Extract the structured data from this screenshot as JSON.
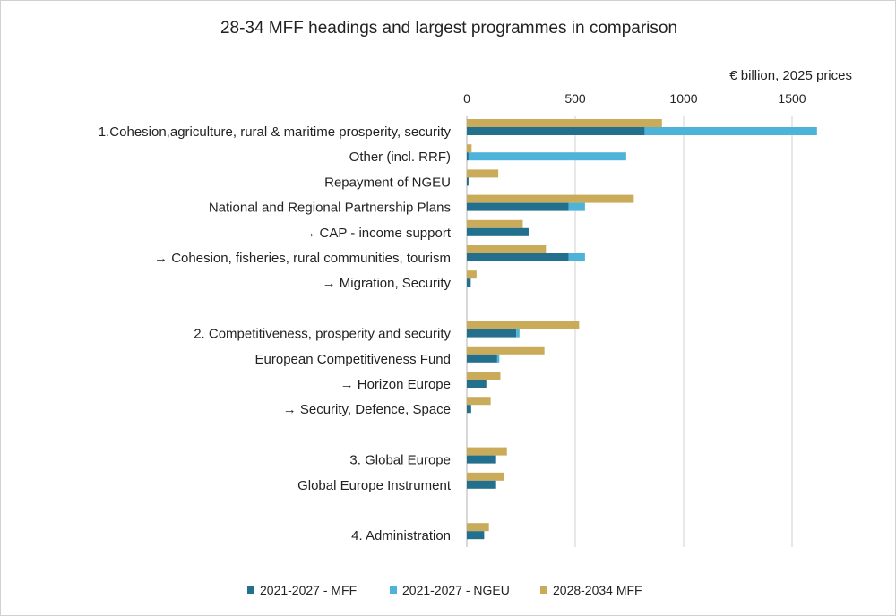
{
  "chart_data": {
    "type": "bar",
    "orientation": "horizontal",
    "title": "28-34 MFF headings and largest programmes in comparison",
    "unit_label": "€ billion, 2025 prices",
    "xlim": [
      0,
      1750
    ],
    "x_ticks": [
      "0",
      "500",
      "1000",
      "1500"
    ],
    "x_tick_values": [
      0,
      500,
      1000,
      1500
    ],
    "grid": true,
    "legend_position": "bottom",
    "colors": {
      "mff_2127": "#236f8e",
      "ngeu_2127": "#4db3d9",
      "mff_2834": "#c9ab5a"
    },
    "legend": [
      {
        "key": "mff_2127",
        "label": "2021-2027 - MFF"
      },
      {
        "key": "ngeu_2127",
        "label": "2021-2027 - NGEU"
      },
      {
        "key": "mff_2834",
        "label": "2028-2034 MFF"
      }
    ],
    "rows": [
      {
        "label": "1.Cohesion,agriculture, rural & maritime prosperity, security",
        "mff_2127": 820,
        "ngeu_2127": 795,
        "mff_2834": 900
      },
      {
        "label": "Other (incl. RRF)",
        "mff_2127": 8,
        "ngeu_2127": 727,
        "mff_2834": 22
      },
      {
        "label": "Repayment of NGEU",
        "mff_2127": 8,
        "ngeu_2127": 0,
        "mff_2834": 145
      },
      {
        "label": "National and Regional Partnership Plans",
        "mff_2127": 470,
        "ngeu_2127": 75,
        "mff_2834": 770
      },
      {
        "label": "→ CAP - income support",
        "mff_2127": 285,
        "ngeu_2127": 0,
        "mff_2834": 258
      },
      {
        "label": "→ Cohesion, fisheries, rural communities, tourism",
        "mff_2127": 470,
        "ngeu_2127": 75,
        "mff_2834": 365
      },
      {
        "label": "→ Migration, Security",
        "mff_2127": 18,
        "ngeu_2127": 0,
        "mff_2834": 45
      },
      {
        "label": "",
        "gap": true
      },
      {
        "label": "2. Competitiveness, prosperity and security",
        "mff_2127": 228,
        "ngeu_2127": 15,
        "mff_2834": 518
      },
      {
        "label": "European Competitiveness Fund",
        "mff_2127": 140,
        "ngeu_2127": 10,
        "mff_2834": 358
      },
      {
        "label": "→ Horizon Europe",
        "mff_2127": 90,
        "ngeu_2127": 0,
        "mff_2834": 155
      },
      {
        "label": "→ Security, Defence, Space",
        "mff_2127": 20,
        "ngeu_2127": 0,
        "mff_2834": 110
      },
      {
        "label": "",
        "gap": true
      },
      {
        "label": "3. Global Europe",
        "mff_2127": 135,
        "ngeu_2127": 0,
        "mff_2834": 185
      },
      {
        "label": "Global Europe Instrument",
        "mff_2127": 135,
        "ngeu_2127": 0,
        "mff_2834": 172
      },
      {
        "label": "",
        "gap": true
      },
      {
        "label": "4. Administration",
        "mff_2127": 80,
        "ngeu_2127": 0,
        "mff_2834": 102
      }
    ]
  }
}
